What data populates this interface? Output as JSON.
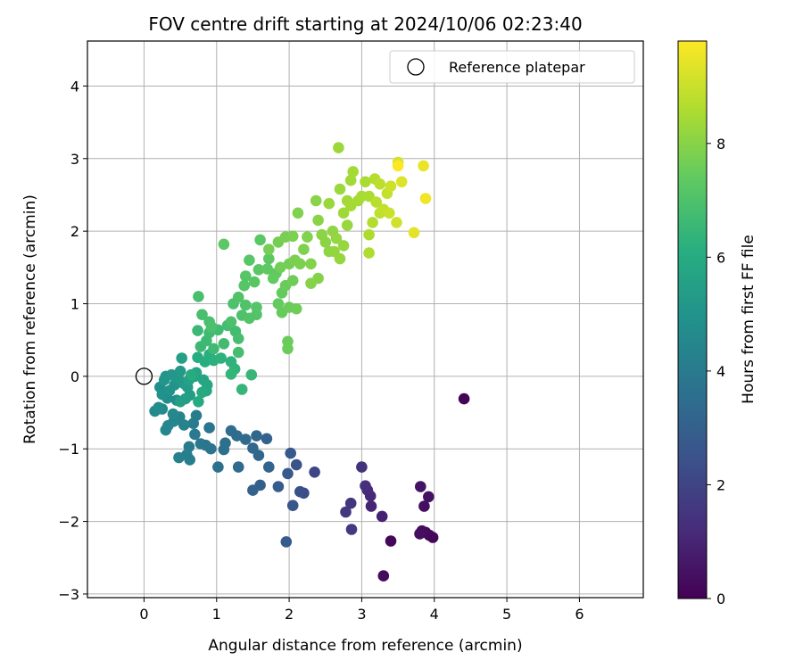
{
  "chart_data": {
    "type": "scatter",
    "title": "FOV centre drift starting at 2024/10/06 02:23:40",
    "xlabel": "Angular distance from reference (arcmin)",
    "ylabel": "Rotation from reference (arcmin)",
    "xlim": [
      -0.78,
      6.88
    ],
    "ylim": [
      -3.05,
      4.62
    ],
    "x_ticks": [
      0,
      1,
      2,
      3,
      4,
      5,
      6
    ],
    "y_ticks": [
      -3,
      -2,
      -1,
      0,
      1,
      2,
      3,
      4
    ],
    "grid": true,
    "legend": {
      "position": "top-right",
      "entries": [
        "Reference platepar"
      ]
    },
    "reference_point": {
      "x": 0,
      "y": 0,
      "label": "Reference platepar"
    },
    "colorbar": {
      "label": "Hours from first FF file",
      "colormap": "viridis",
      "range": [
        0,
        9.8
      ],
      "ticks": [
        0,
        2,
        4,
        6,
        8
      ]
    },
    "points": [
      [
        4.41,
        -0.31,
        0.1
      ],
      [
        3.3,
        -2.75,
        0.3
      ],
      [
        3.4,
        -2.27,
        0.2
      ],
      [
        3.98,
        -2.22,
        0.15
      ],
      [
        3.93,
        -2.19,
        0.2
      ],
      [
        3.88,
        -2.15,
        0.25
      ],
      [
        3.83,
        -2.13,
        0.3
      ],
      [
        3.8,
        -2.17,
        0.35
      ],
      [
        3.86,
        -1.79,
        0.4
      ],
      [
        3.92,
        -1.66,
        0.45
      ],
      [
        3.81,
        -1.52,
        0.5
      ],
      [
        3.28,
        -1.93,
        0.9
      ],
      [
        3.13,
        -1.79,
        1.0
      ],
      [
        3.12,
        -1.65,
        1.1
      ],
      [
        3.08,
        -1.57,
        1.2
      ],
      [
        3.05,
        -1.51,
        1.3
      ],
      [
        3.0,
        -1.25,
        1.4
      ],
      [
        2.85,
        -1.75,
        1.5
      ],
      [
        2.78,
        -1.87,
        1.6
      ],
      [
        2.86,
        -2.11,
        1.7
      ],
      [
        2.35,
        -1.32,
        2.1
      ],
      [
        2.2,
        -1.61,
        2.3
      ],
      [
        2.15,
        -1.59,
        2.4
      ],
      [
        2.1,
        -1.22,
        2.5
      ],
      [
        2.05,
        -1.78,
        2.6
      ],
      [
        2.02,
        -1.06,
        2.7
      ],
      [
        1.98,
        -1.34,
        2.75
      ],
      [
        1.96,
        -2.28,
        2.8
      ],
      [
        1.85,
        -1.52,
        2.85
      ],
      [
        1.6,
        -1.5,
        3.0
      ],
      [
        1.5,
        -1.57,
        3.05
      ],
      [
        1.69,
        -0.86,
        3.1
      ],
      [
        1.72,
        -1.25,
        3.15
      ],
      [
        1.58,
        -1.09,
        3.2
      ],
      [
        1.55,
        -0.82,
        3.25
      ],
      [
        1.5,
        -0.99,
        3.3
      ],
      [
        1.4,
        -0.87,
        3.35
      ],
      [
        1.3,
        -1.25,
        3.4
      ],
      [
        1.28,
        -0.82,
        3.45
      ],
      [
        1.2,
        -0.75,
        3.5
      ],
      [
        1.12,
        -0.92,
        3.55
      ],
      [
        1.1,
        -1.01,
        3.6
      ],
      [
        1.02,
        -1.25,
        3.65
      ],
      [
        0.92,
        -1.0,
        3.7
      ],
      [
        0.85,
        -0.95,
        3.8
      ],
      [
        0.9,
        -0.71,
        3.85
      ],
      [
        0.78,
        -0.93,
        3.9
      ],
      [
        0.7,
        -0.8,
        3.95
      ],
      [
        0.62,
        -0.97,
        4.0
      ],
      [
        0.68,
        -0.65,
        4.05
      ],
      [
        0.72,
        -0.54,
        4.1
      ],
      [
        0.63,
        -1.15,
        4.15
      ],
      [
        0.59,
        -1.08,
        4.2
      ],
      [
        0.48,
        -1.12,
        4.25
      ],
      [
        0.55,
        -0.67,
        4.3
      ],
      [
        0.49,
        -0.56,
        4.35
      ],
      [
        0.41,
        -0.62,
        4.4
      ],
      [
        0.33,
        -0.68,
        4.45
      ],
      [
        0.3,
        -0.74,
        4.5
      ],
      [
        0.4,
        -0.52,
        4.55
      ],
      [
        0.25,
        -0.45,
        4.6
      ],
      [
        0.15,
        -0.48,
        4.65
      ],
      [
        0.2,
        -0.43,
        4.7
      ],
      [
        0.45,
        -0.33,
        4.75
      ],
      [
        0.32,
        -0.3,
        4.8
      ],
      [
        0.22,
        -0.15,
        4.85
      ],
      [
        0.25,
        -0.25,
        4.9
      ],
      [
        0.35,
        -0.2,
        4.95
      ],
      [
        0.42,
        -0.12,
        5.0
      ],
      [
        0.3,
        0.0,
        5.05
      ],
      [
        0.28,
        -0.05,
        5.1
      ],
      [
        0.38,
        0.02,
        5.15
      ],
      [
        0.48,
        -0.05,
        5.2
      ],
      [
        0.5,
        0.07,
        5.25
      ],
      [
        0.55,
        -0.1,
        5.3
      ],
      [
        0.6,
        -0.15,
        5.35
      ],
      [
        0.63,
        -0.26,
        5.4
      ],
      [
        0.57,
        -0.31,
        5.45
      ],
      [
        0.5,
        -0.35,
        5.5
      ],
      [
        0.52,
        0.25,
        5.55
      ],
      [
        0.62,
        -0.05,
        5.6
      ],
      [
        0.7,
        0.0,
        5.65
      ],
      [
        0.72,
        0.05,
        5.7
      ],
      [
        0.82,
        -0.05,
        5.75
      ],
      [
        0.87,
        -0.12,
        5.8
      ],
      [
        0.86,
        -0.2,
        5.85
      ],
      [
        0.8,
        -0.22,
        5.9
      ],
      [
        0.75,
        -0.35,
        5.95
      ],
      [
        0.65,
        0.02,
        6.0
      ],
      [
        0.74,
        0.26,
        6.05
      ],
      [
        0.84,
        0.2,
        6.1
      ],
      [
        0.9,
        0.3,
        6.15
      ],
      [
        0.96,
        0.22,
        6.2
      ],
      [
        1.06,
        0.25,
        6.25
      ],
      [
        1.2,
        0.2,
        6.3
      ],
      [
        1.25,
        0.1,
        6.35
      ],
      [
        1.2,
        0.03,
        6.4
      ],
      [
        1.35,
        -0.18,
        6.45
      ],
      [
        1.48,
        0.02,
        6.5
      ],
      [
        0.74,
        0.63,
        6.55
      ],
      [
        0.78,
        0.41,
        6.6
      ],
      [
        0.86,
        0.49,
        6.62
      ],
      [
        0.9,
        0.6,
        6.65
      ],
      [
        0.96,
        0.38,
        6.67
      ],
      [
        1.02,
        0.64,
        6.7
      ],
      [
        1.1,
        0.45,
        6.72
      ],
      [
        1.15,
        0.7,
        6.75
      ],
      [
        1.26,
        0.62,
        6.77
      ],
      [
        1.3,
        0.52,
        6.8
      ],
      [
        1.3,
        0.33,
        6.82
      ],
      [
        0.75,
        1.1,
        6.85
      ],
      [
        0.8,
        0.85,
        6.87
      ],
      [
        0.9,
        0.75,
        6.9
      ],
      [
        0.93,
        0.68,
        6.92
      ],
      [
        1.2,
        0.75,
        6.95
      ],
      [
        1.23,
        1.0,
        6.97
      ],
      [
        1.35,
        0.84,
        7.0
      ],
      [
        1.4,
        0.98,
        7.02
      ],
      [
        1.3,
        1.09,
        7.05
      ],
      [
        1.45,
        0.8,
        7.07
      ],
      [
        1.55,
        0.85,
        7.1
      ],
      [
        1.55,
        0.95,
        7.12
      ],
      [
        1.38,
        1.25,
        7.15
      ],
      [
        1.4,
        1.38,
        7.17
      ],
      [
        1.45,
        1.6,
        7.2
      ],
      [
        1.52,
        1.3,
        7.22
      ],
      [
        1.58,
        1.47,
        7.25
      ],
      [
        1.6,
        1.88,
        7.27
      ],
      [
        1.1,
        1.82,
        7.3
      ],
      [
        1.72,
        1.62,
        7.32
      ],
      [
        1.7,
        1.48,
        7.35
      ],
      [
        1.82,
        1.42,
        7.37
      ],
      [
        1.78,
        1.35,
        7.4
      ],
      [
        1.9,
        1.15,
        7.42
      ],
      [
        1.85,
        1.0,
        7.45
      ],
      [
        1.9,
        0.88,
        7.47
      ],
      [
        1.95,
        1.25,
        7.5
      ],
      [
        1.98,
        0.48,
        7.52
      ],
      [
        1.98,
        0.38,
        7.55
      ],
      [
        2.0,
        0.95,
        7.57
      ],
      [
        2.1,
        0.93,
        7.6
      ],
      [
        2.05,
        1.32,
        7.62
      ],
      [
        1.88,
        1.5,
        7.65
      ],
      [
        2.0,
        1.55,
        7.67
      ],
      [
        1.85,
        1.85,
        7.7
      ],
      [
        1.72,
        1.75,
        7.72
      ],
      [
        1.95,
        1.92,
        7.75
      ],
      [
        2.05,
        1.93,
        7.77
      ],
      [
        2.08,
        1.6,
        7.8
      ],
      [
        2.15,
        1.55,
        7.82
      ],
      [
        2.2,
        1.75,
        7.85
      ],
      [
        2.12,
        2.25,
        7.87
      ],
      [
        2.25,
        1.92,
        7.9
      ],
      [
        2.3,
        1.55,
        7.92
      ],
      [
        2.4,
        1.35,
        7.95
      ],
      [
        2.3,
        1.28,
        7.97
      ],
      [
        2.37,
        2.42,
        8.0
      ],
      [
        2.4,
        2.15,
        8.02
      ],
      [
        2.45,
        1.95,
        8.05
      ],
      [
        2.5,
        1.85,
        8.07
      ],
      [
        2.55,
        1.72,
        8.1
      ],
      [
        2.6,
        2.0,
        8.12
      ],
      [
        2.62,
        1.72,
        8.15
      ],
      [
        2.65,
        1.9,
        8.17
      ],
      [
        2.7,
        1.62,
        8.2
      ],
      [
        2.75,
        1.8,
        8.22
      ],
      [
        2.8,
        2.08,
        8.25
      ],
      [
        2.55,
        2.38,
        8.27
      ],
      [
        2.7,
        2.58,
        8.3
      ],
      [
        2.68,
        3.15,
        8.32
      ],
      [
        2.75,
        2.25,
        8.35
      ],
      [
        2.8,
        2.42,
        8.37
      ],
      [
        2.85,
        2.7,
        8.4
      ],
      [
        2.88,
        2.82,
        8.42
      ],
      [
        2.85,
        2.35,
        8.45
      ],
      [
        2.95,
        2.42,
        8.47
      ],
      [
        3.0,
        2.48,
        8.5
      ],
      [
        3.05,
        2.68,
        8.52
      ],
      [
        3.1,
        2.48,
        8.55
      ],
      [
        3.1,
        1.95,
        8.57
      ],
      [
        3.1,
        1.7,
        8.6
      ],
      [
        3.15,
        2.12,
        8.65
      ],
      [
        3.18,
        2.72,
        8.7
      ],
      [
        3.2,
        2.4,
        8.75
      ],
      [
        3.25,
        2.65,
        8.8
      ],
      [
        3.25,
        2.25,
        8.85
      ],
      [
        3.3,
        2.3,
        8.9
      ],
      [
        3.35,
        2.52,
        8.95
      ],
      [
        3.38,
        2.25,
        9.0
      ],
      [
        3.4,
        2.62,
        9.05
      ],
      [
        3.48,
        2.12,
        9.1
      ],
      [
        3.5,
        2.95,
        9.2
      ],
      [
        3.55,
        2.68,
        9.3
      ],
      [
        3.72,
        1.98,
        9.4
      ],
      [
        3.85,
        2.9,
        9.5
      ],
      [
        3.88,
        2.45,
        9.6
      ],
      [
        3.5,
        2.9,
        9.8
      ]
    ]
  }
}
